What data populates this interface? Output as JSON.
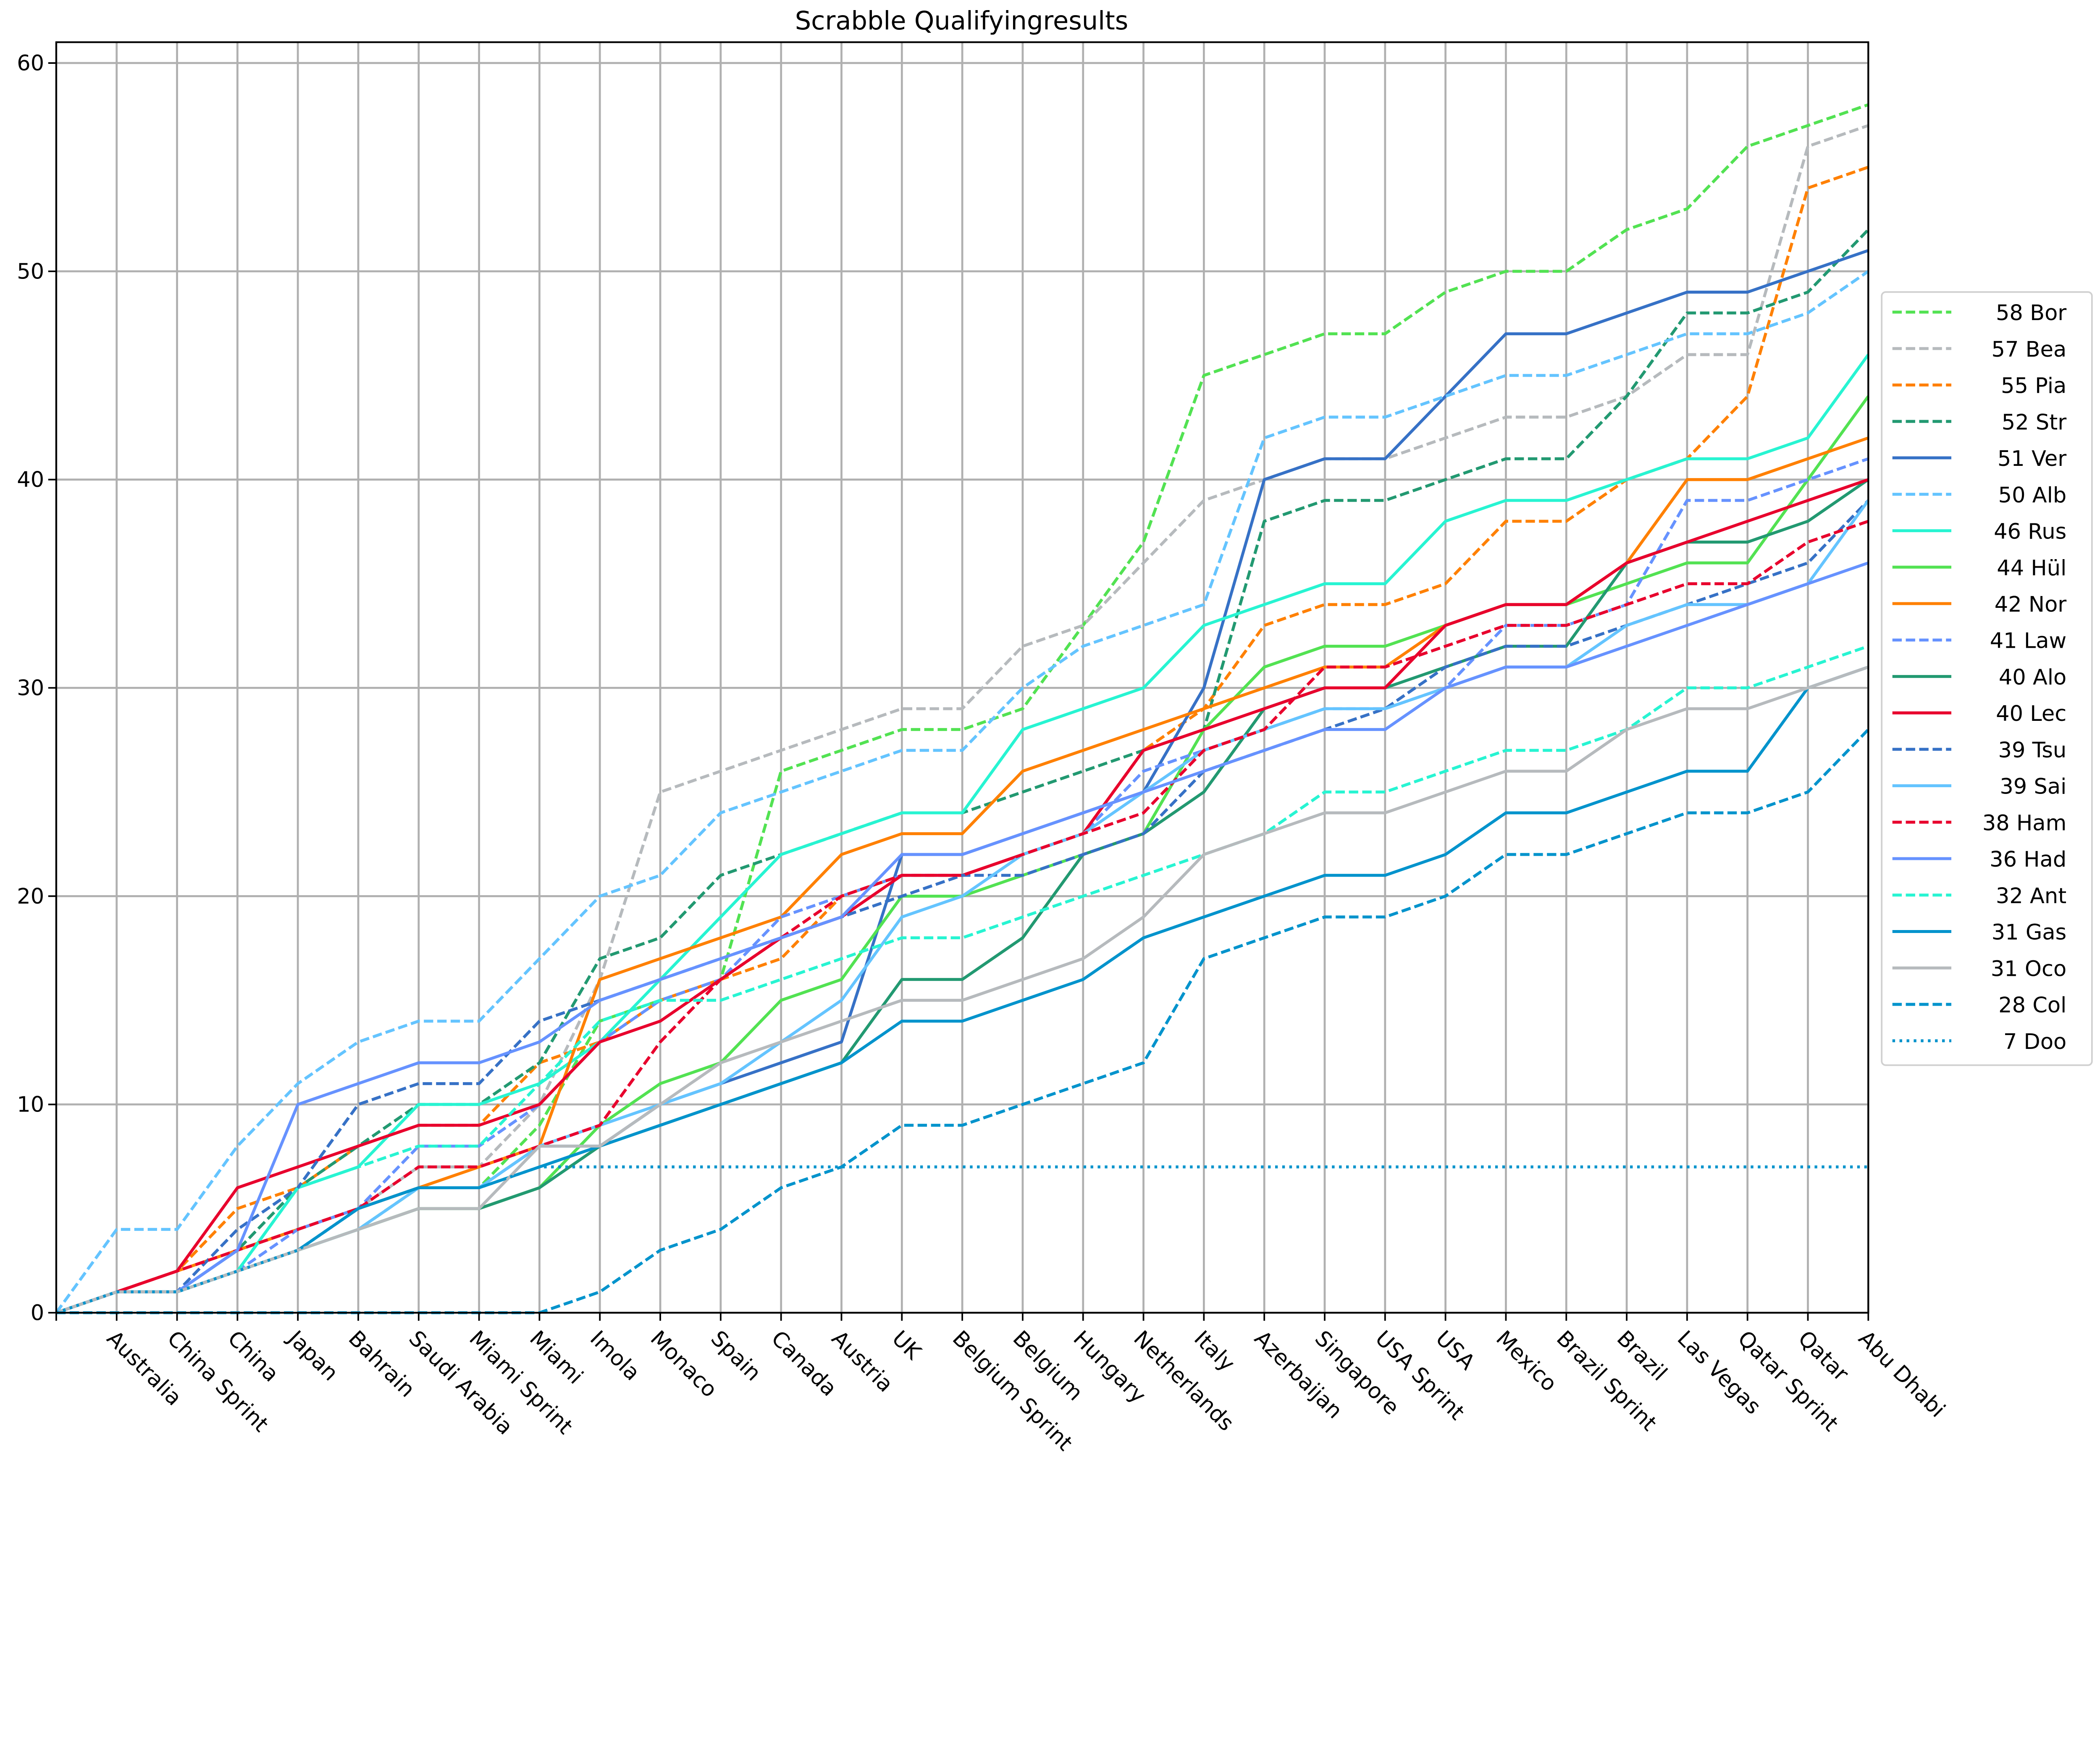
{
  "chart_data": {
    "type": "line",
    "title": "Scrabble Qualifyingresults",
    "xlabel": "",
    "ylabel": "",
    "ylim": [
      0,
      61
    ],
    "yticks": [
      0,
      10,
      20,
      30,
      40,
      50,
      60
    ],
    "grid": true,
    "legend_placement": "right",
    "categories": [
      "",
      "Australia",
      "China Sprint",
      "China",
      "Japan",
      "Bahrain",
      "Saudi Arabia",
      "Miami Sprint",
      "Miami",
      "Imola",
      "Monaco",
      "Spain",
      "Canada",
      "Austria",
      "UK",
      "Belgium Sprint",
      "Belgium",
      "Hungary",
      "Netherlands",
      "Italy",
      "Azerbaijan",
      "Singapore",
      "USA Sprint",
      "USA",
      "Mexico",
      "Brazil Sprint",
      "Brazil",
      "Las Vegas",
      "Qatar Sprint",
      "Qatar",
      "Abu Dhabi"
    ],
    "series": [
      {
        "name": "58 Bor",
        "color": "#52e252",
        "dash": "dashed",
        "values": [
          0,
          1,
          1,
          2,
          3,
          4,
          6,
          6,
          9,
          14,
          15,
          16,
          26,
          27,
          28,
          28,
          29,
          33,
          37,
          45,
          46,
          47,
          47,
          49,
          50,
          50,
          52,
          53,
          56,
          57,
          58
        ]
      },
      {
        "name": "57 Bea",
        "color": "#b6babd",
        "dash": "dashed",
        "values": [
          0,
          1,
          1,
          2,
          3,
          5,
          7,
          7,
          10,
          16,
          25,
          26,
          27,
          28,
          29,
          29,
          32,
          33,
          36,
          39,
          40,
          41,
          41,
          42,
          43,
          43,
          44,
          46,
          46,
          56,
          57
        ]
      },
      {
        "name": "55 Pia",
        "color": "#ff8000",
        "dash": "dashed",
        "values": [
          0,
          1,
          2,
          5,
          6,
          8,
          9,
          9,
          12,
          13,
          15,
          16,
          17,
          20,
          21,
          21,
          22,
          23,
          27,
          29,
          33,
          34,
          34,
          35,
          38,
          38,
          40,
          41,
          44,
          54,
          55
        ]
      },
      {
        "name": "52 Str",
        "color": "#229971",
        "dash": "dashed",
        "values": [
          0,
          1,
          1,
          3,
          6,
          8,
          10,
          10,
          12,
          17,
          18,
          21,
          22,
          23,
          24,
          24,
          25,
          26,
          27,
          28,
          38,
          39,
          39,
          40,
          41,
          41,
          44,
          48,
          48,
          49,
          52
        ]
      },
      {
        "name": "51 Ver",
        "color": "#3671c6",
        "dash": "solid",
        "values": [
          0,
          1,
          1,
          3,
          4,
          5,
          6,
          6,
          8,
          8,
          10,
          11,
          12,
          13,
          22,
          22,
          23,
          24,
          25,
          30,
          40,
          41,
          41,
          44,
          47,
          47,
          48,
          49,
          49,
          50,
          51
        ]
      },
      {
        "name": "50 Alb",
        "color": "#64c4ff",
        "dash": "dashed",
        "values": [
          0,
          4,
          4,
          8,
          11,
          13,
          14,
          14,
          17,
          20,
          21,
          24,
          25,
          26,
          27,
          27,
          30,
          32,
          33,
          34,
          42,
          43,
          43,
          44,
          45,
          45,
          46,
          47,
          47,
          48,
          50
        ]
      },
      {
        "name": "46 Rus",
        "color": "#27f4d2",
        "dash": "solid",
        "values": [
          0,
          1,
          1,
          2,
          6,
          7,
          10,
          10,
          11,
          13,
          16,
          19,
          22,
          23,
          24,
          24,
          28,
          29,
          30,
          33,
          34,
          35,
          35,
          38,
          39,
          39,
          40,
          41,
          41,
          42,
          46
        ]
      },
      {
        "name": "44 Hül",
        "color": "#52e252",
        "dash": "solid",
        "values": [
          0,
          1,
          1,
          2,
          3,
          4,
          5,
          5,
          6,
          9,
          11,
          12,
          15,
          16,
          20,
          20,
          21,
          22,
          23,
          28,
          31,
          32,
          32,
          33,
          34,
          34,
          35,
          36,
          36,
          40,
          44
        ]
      },
      {
        "name": "42 Nor",
        "color": "#ff8000",
        "dash": "solid",
        "values": [
          0,
          1,
          2,
          3,
          4,
          5,
          6,
          7,
          8,
          16,
          17,
          18,
          19,
          22,
          23,
          23,
          26,
          27,
          28,
          29,
          30,
          31,
          31,
          33,
          34,
          34,
          36,
          40,
          40,
          41,
          42
        ]
      },
      {
        "name": "41 Law",
        "color": "#6692ff",
        "dash": "dashed",
        "values": [
          0,
          1,
          1,
          2,
          4,
          5,
          8,
          8,
          10,
          13,
          15,
          16,
          19,
          20,
          21,
          21,
          22,
          23,
          26,
          27,
          28,
          29,
          29,
          30,
          33,
          33,
          34,
          39,
          39,
          40,
          41
        ]
      },
      {
        "name": "40 Alo",
        "color": "#229971",
        "dash": "solid",
        "values": [
          0,
          1,
          1,
          2,
          3,
          4,
          5,
          5,
          6,
          8,
          9,
          10,
          11,
          12,
          16,
          16,
          18,
          22,
          23,
          25,
          29,
          30,
          30,
          31,
          32,
          32,
          36,
          37,
          37,
          38,
          40
        ]
      },
      {
        "name": "40 Lec",
        "color": "#e8002d",
        "dash": "solid",
        "values": [
          0,
          1,
          2,
          6,
          7,
          8,
          9,
          9,
          10,
          13,
          14,
          16,
          18,
          19,
          21,
          21,
          22,
          23,
          27,
          28,
          29,
          30,
          30,
          33,
          34,
          34,
          36,
          37,
          38,
          39,
          40
        ]
      },
      {
        "name": "39 Tsu",
        "color": "#3671c6",
        "dash": "dashed",
        "values": [
          0,
          1,
          1,
          4,
          6,
          10,
          11,
          11,
          14,
          15,
          16,
          17,
          18,
          19,
          20,
          21,
          21,
          22,
          23,
          26,
          27,
          28,
          29,
          31,
          32,
          32,
          33,
          34,
          35,
          36,
          39
        ]
      },
      {
        "name": "39 Sai",
        "color": "#64c4ff",
        "dash": "solid",
        "values": [
          0,
          1,
          1,
          2,
          3,
          4,
          6,
          6,
          8,
          9,
          10,
          11,
          13,
          15,
          19,
          20,
          22,
          23,
          25,
          27,
          28,
          29,
          29,
          30,
          31,
          31,
          33,
          34,
          34,
          35,
          39
        ]
      },
      {
        "name": "38 Ham",
        "color": "#e8002d",
        "dash": "dashed",
        "values": [
          0,
          1,
          2,
          3,
          4,
          5,
          7,
          7,
          8,
          9,
          13,
          16,
          18,
          20,
          21,
          21,
          22,
          23,
          24,
          27,
          28,
          31,
          31,
          32,
          33,
          33,
          34,
          35,
          35,
          37,
          38
        ]
      },
      {
        "name": "36 Had",
        "color": "#6692ff",
        "dash": "solid",
        "values": [
          0,
          1,
          1,
          3,
          10,
          11,
          12,
          12,
          13,
          15,
          16,
          17,
          18,
          19,
          22,
          22,
          23,
          24,
          25,
          26,
          27,
          28,
          28,
          30,
          31,
          31,
          32,
          33,
          34,
          35,
          36
        ]
      },
      {
        "name": "32 Ant",
        "color": "#27f4d2",
        "dash": "dashed",
        "values": [
          0,
          1,
          1,
          2,
          6,
          7,
          8,
          8,
          11,
          14,
          15,
          15,
          16,
          17,
          18,
          18,
          19,
          20,
          21,
          22,
          23,
          25,
          25,
          26,
          27,
          27,
          28,
          30,
          30,
          31,
          32
        ]
      },
      {
        "name": "31 Gas",
        "color": "#0093cc",
        "dash": "solid",
        "values": [
          0,
          1,
          1,
          2,
          3,
          5,
          6,
          6,
          7,
          8,
          9,
          10,
          11,
          12,
          14,
          14,
          15,
          16,
          18,
          19,
          20,
          21,
          21,
          22,
          24,
          24,
          25,
          26,
          26,
          30,
          31
        ]
      },
      {
        "name": "31 Oco",
        "color": "#b6babd",
        "dash": "solid",
        "values": [
          0,
          1,
          1,
          2,
          3,
          4,
          5,
          5,
          8,
          8,
          10,
          12,
          13,
          14,
          15,
          15,
          16,
          17,
          19,
          22,
          23,
          24,
          24,
          25,
          26,
          26,
          28,
          29,
          29,
          30,
          31
        ]
      },
      {
        "name": "28 Col",
        "color": "#0093cc",
        "dash": "dashed",
        "values": [
          0,
          0,
          0,
          0,
          0,
          0,
          0,
          0,
          0,
          1,
          3,
          4,
          6,
          7,
          9,
          9,
          10,
          11,
          12,
          17,
          18,
          19,
          19,
          20,
          22,
          22,
          23,
          24,
          24,
          25,
          28
        ]
      },
      {
        "name": "7 Doo",
        "color": "#0093cc",
        "dash": "dotted",
        "values": [
          0,
          1,
          1,
          2,
          3,
          5,
          6,
          6,
          7,
          7,
          7,
          7,
          7,
          7,
          7,
          7,
          7,
          7,
          7,
          7,
          7,
          7,
          7,
          7,
          7,
          7,
          7,
          7,
          7,
          7,
          7
        ]
      }
    ]
  }
}
